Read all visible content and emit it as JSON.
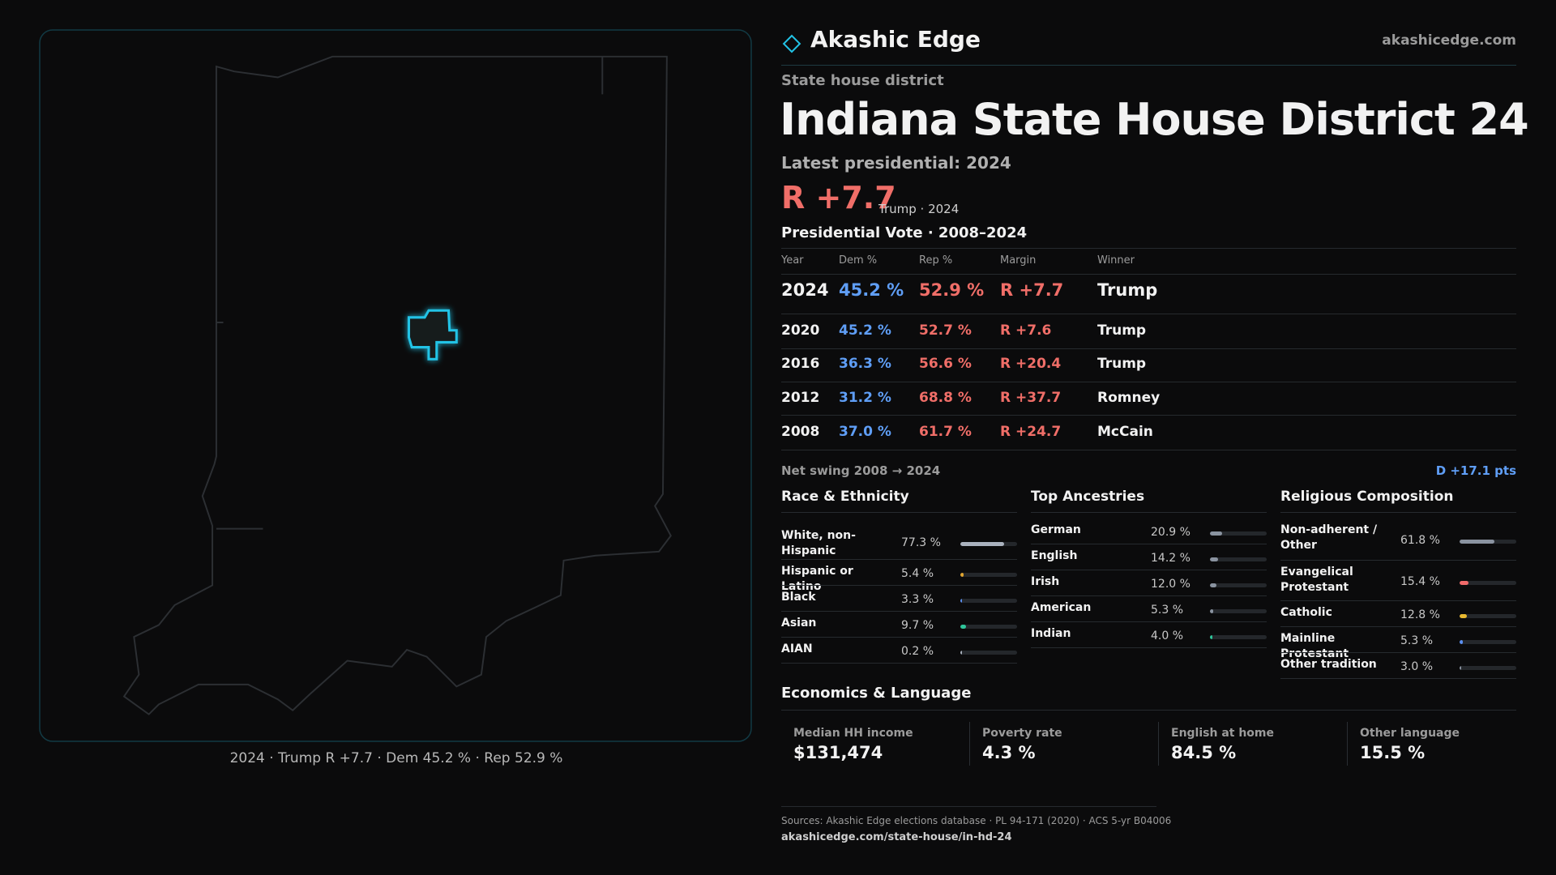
{
  "header": {
    "brand": "Akashic Edge",
    "site": "akashicedge.com"
  },
  "map": {
    "caption": "2024 · Trump R +7.7 · Dem 45.2 % · Rep 52.9 %"
  },
  "kicker": "State house district",
  "title": "Indiana State House District 24",
  "latest": "Latest presidential: 2024",
  "margin": "R +7.7",
  "margin_note": "Trump · 2024",
  "vote_table": {
    "title": "Presidential Vote · 2008–2024",
    "columns": [
      "Year",
      "Dem %",
      "Rep %",
      "Margin",
      "Winner"
    ],
    "rows": [
      [
        "2024",
        "45.2 %",
        "52.9 %",
        "R +7.7",
        "Trump"
      ],
      [
        "2020",
        "45.2 %",
        "52.7 %",
        "R +7.6",
        "Trump"
      ],
      [
        "2016",
        "36.3 %",
        "56.6 %",
        "R +20.4",
        "Trump"
      ],
      [
        "2012",
        "31.2 %",
        "68.8 %",
        "R +37.7",
        "Romney"
      ],
      [
        "2008",
        "37.0 %",
        "61.7 %",
        "R +24.7",
        "McCain"
      ]
    ]
  },
  "net_swing": {
    "label": "Net swing 2008 → 2024",
    "value": "D +17.1 pts"
  },
  "race": {
    "title": "Race & Ethnicity",
    "categories": [
      "White, non-Hispanic",
      "Hispanic or Latino",
      "Black",
      "Asian",
      "AIAN"
    ],
    "values": [
      77.3,
      5.4,
      3.3,
      9.7,
      0.2
    ],
    "value_labels": [
      "77.3 %",
      "5.4 %",
      "3.3 %",
      "9.7 %",
      "0.2 %"
    ],
    "colors": [
      "#aab2be",
      "#e0a530",
      "#5b8ff0",
      "#2fc59a",
      "#aab2be"
    ],
    "xlim": [
      0,
      100
    ]
  },
  "ancestry": {
    "title": "Top Ancestries",
    "categories": [
      "German",
      "English",
      "Irish",
      "American",
      "Indian"
    ],
    "values": [
      20.9,
      14.2,
      12.0,
      5.3,
      4.0
    ],
    "value_labels": [
      "20.9 %",
      "14.2 %",
      "12.0 %",
      "5.3 %",
      "4.0 %"
    ],
    "colors": [
      "#8a93a0",
      "#8a93a0",
      "#8a93a0",
      "#8a93a0",
      "#2fc59a"
    ],
    "xlim": [
      0,
      100
    ]
  },
  "religion": {
    "title": "Religious Composition",
    "categories": [
      "Non-adherent / Other",
      "Evangelical Protestant",
      "Catholic",
      "Mainline Protestant",
      "Other tradition"
    ],
    "values": [
      61.8,
      15.4,
      12.8,
      5.3,
      3.0
    ],
    "value_labels": [
      "61.8 %",
      "15.4 %",
      "12.8 %",
      "5.3 %",
      "3.0 %"
    ],
    "colors": [
      "#8a93a0",
      "#f06a6a",
      "#e8b830",
      "#5b8ff0",
      "#8a93a0"
    ],
    "xlim": [
      0,
      100
    ]
  },
  "economics": {
    "title": "Economics & Language",
    "items": [
      {
        "label": "Median HH income",
        "value": "$131,474"
      },
      {
        "label": "Poverty rate",
        "value": "4.3 %"
      },
      {
        "label": "English at home",
        "value": "84.5 %"
      },
      {
        "label": "Other language",
        "value": "15.5 %"
      }
    ]
  },
  "sources": {
    "text": "Sources: Akashic Edge elections database · PL 94-171 (2020) · ACS 5-yr B04006",
    "url": "akashicedge.com/state-house/in-hd-24"
  }
}
